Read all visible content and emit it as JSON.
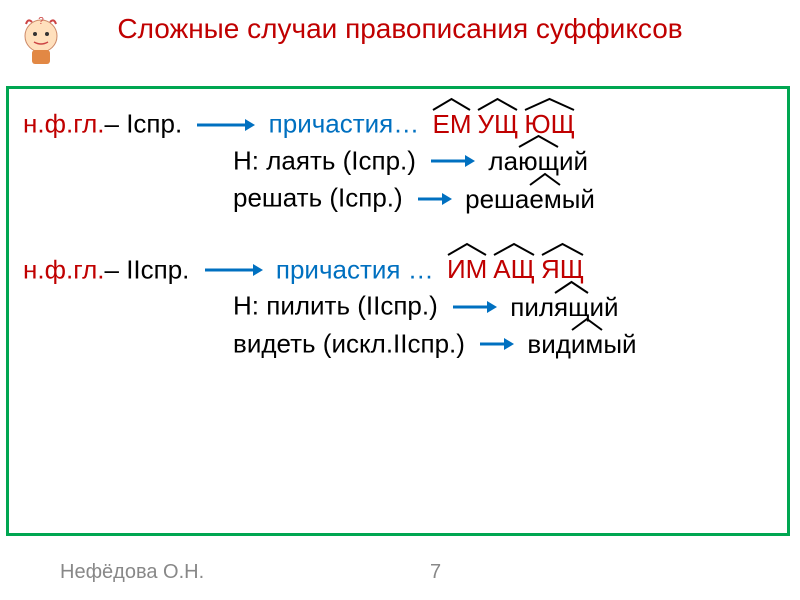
{
  "title": "Сложные случаи правописания суффиксов",
  "colors": {
    "title": "#c00000",
    "border": "#00a651",
    "red": "#c00000",
    "blue": "#0070c0",
    "black": "#000000",
    "footer": "#888888"
  },
  "block1": {
    "prefix": "н.ф.гл.",
    "conj": "– Iспр.",
    "part_label": "причастия…",
    "suffixes": [
      "ЕМ",
      "УЩ",
      "ЮЩ"
    ],
    "ex1_label": "Н:",
    "ex1_word": "лаять",
    "ex1_conj": "(Iспр.)",
    "ex1_result": "лающий",
    "ex1_result_roofs": [
      {
        "text": "ла",
        "roof": false
      },
      {
        "text": "ющ",
        "roof": true
      },
      {
        "text": "ий",
        "roof": false
      }
    ],
    "ex2_word": "решать",
    "ex2_conj": "(Iспр.)",
    "ex2_result": "решаемый",
    "ex2_result_roofs": [
      {
        "text": "реша",
        "roof": false
      },
      {
        "text": "ем",
        "roof": true
      },
      {
        "text": "ый",
        "roof": false
      }
    ]
  },
  "block2": {
    "prefix": "н.ф.гл.",
    "conj": "– IIспр.",
    "part_label": "причастия …",
    "suffixes": [
      "ИМ",
      "АЩ",
      "ЯЩ"
    ],
    "ex1_label": "Н:",
    "ex1_word": "пилить",
    "ex1_conj": "(IIспр.)",
    "ex1_result": "пилящий",
    "ex1_result_roofs": [
      {
        "text": "пил",
        "roof": false
      },
      {
        "text": "ящ",
        "roof": true
      },
      {
        "text": "ий",
        "roof": false
      }
    ],
    "ex2_word": "видеть",
    "ex2_conj": "(искл.IIспр.)",
    "ex2_result": "видимый",
    "ex2_result_roofs": [
      {
        "text": "вид",
        "roof": false
      },
      {
        "text": "им",
        "roof": true
      },
      {
        "text": "ый",
        "roof": false
      }
    ]
  },
  "footer": "Нефёдова О.Н.",
  "page": "7",
  "arrow_color": "#0070c0",
  "roof_color": "#000000"
}
